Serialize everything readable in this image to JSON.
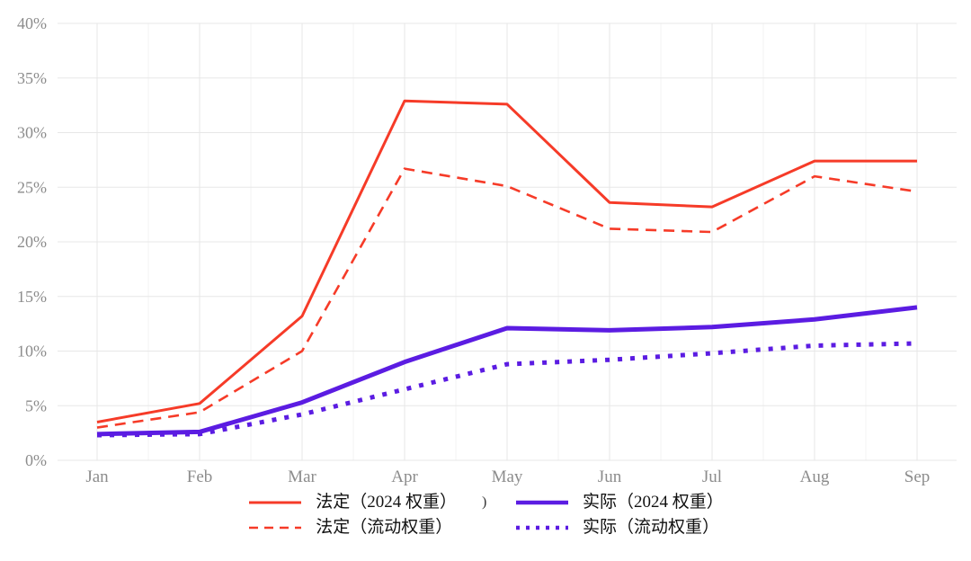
{
  "chart_data": {
    "type": "line",
    "x": [
      "Jan",
      "Feb",
      "Mar",
      "Apr",
      "May",
      "Jun",
      "Jul",
      "Aug",
      "Sep"
    ],
    "series": [
      {
        "name": "法定（2024 权重）",
        "color": "#f63b28",
        "style": "solid",
        "width": 3,
        "values": [
          3.5,
          5.2,
          13.2,
          32.9,
          32.6,
          23.6,
          23.2,
          27.4,
          27.4
        ]
      },
      {
        "name": "法定（流动权重）",
        "color": "#f63b28",
        "style": "dashed",
        "width": 2.6,
        "values": [
          3.0,
          4.4,
          10.0,
          26.7,
          25.1,
          21.2,
          20.9,
          26.0,
          24.6
        ]
      },
      {
        "name": "实际（2024 权重）",
        "color": "#5b1ce2",
        "style": "solid",
        "width": 5,
        "values": [
          2.4,
          2.6,
          5.3,
          9.0,
          12.1,
          11.9,
          12.2,
          12.9,
          14.0
        ]
      },
      {
        "name": "实际（流动权重）",
        "color": "#5b1ce2",
        "style": "dotted",
        "width": 5,
        "values": [
          2.3,
          2.4,
          4.2,
          6.5,
          8.8,
          9.2,
          9.8,
          10.5,
          10.7
        ]
      }
    ],
    "title": "",
    "xlabel": "",
    "ylabel": "",
    "ylim": [
      0,
      40
    ],
    "ytick_step": 5,
    "ytick_suffix": "%",
    "grid": true,
    "grid_color": "#e7e7e7",
    "grid_minor_color": "#f3f3f3",
    "axis_text_color": "#8c8c8c",
    "legend_position": "bottom"
  },
  "legend": {
    "artifact": ")"
  }
}
